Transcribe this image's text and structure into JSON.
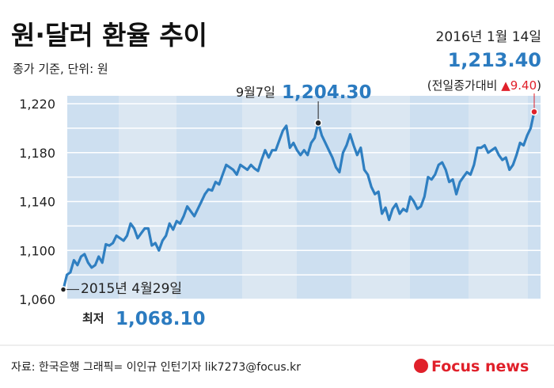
{
  "header": {
    "title": "원·달러 환율 추이",
    "subtitle": "종가 기준, 단위: 원",
    "date": "2016년 1월 14일",
    "latest_value": "1,213.40",
    "change_prefix": "(전일종가대비 ",
    "change_value": "▲9.40",
    "change_suffix": ")"
  },
  "annotations": {
    "peak_date": "9월7일",
    "peak_value": "1,204.30",
    "low_date": "2015년 4월29일",
    "low_label": "최저",
    "low_value": "1,068.10"
  },
  "footer": {
    "source": "자료: 한국은행   그래픽= 이인규 인턴기자 lik7273@focus.kr",
    "logo": "Focus news"
  },
  "colors": {
    "line": "#2f7fc1",
    "accent": "#2b7bc0",
    "up": "#e0202a",
    "plot_bg": "#dbe7f2",
    "band": "#cddff0"
  },
  "chart_data": {
    "type": "line",
    "title": "원·달러 환율 추이",
    "ylabel": "",
    "ylim": [
      1060,
      1220
    ],
    "yticks": [
      "1,220",
      "1,180",
      "1,140",
      "1,100",
      "1,060"
    ],
    "ytick_values": [
      1220,
      1180,
      1140,
      1100,
      1060
    ],
    "grid": true,
    "x_start": "2015년 4월29일",
    "x_end": "2016년 1월 14일",
    "values": [
      1068,
      1080,
      1082,
      1092,
      1088,
      1095,
      1097,
      1090,
      1086,
      1088,
      1095,
      1090,
      1105,
      1104,
      1106,
      1112,
      1110,
      1108,
      1112,
      1122,
      1118,
      1110,
      1114,
      1118,
      1118,
      1104,
      1106,
      1100,
      1108,
      1112,
      1122,
      1117,
      1124,
      1122,
      1128,
      1136,
      1132,
      1128,
      1134,
      1140,
      1146,
      1150,
      1149,
      1156,
      1154,
      1162,
      1170,
      1168,
      1166,
      1162,
      1170,
      1168,
      1166,
      1170,
      1167,
      1165,
      1174,
      1182,
      1176,
      1182,
      1182,
      1190,
      1198,
      1202,
      1184,
      1188,
      1182,
      1178,
      1182,
      1178,
      1188,
      1192,
      1204.3,
      1194,
      1188,
      1182,
      1176,
      1168,
      1164,
      1180,
      1186,
      1195,
      1186,
      1178,
      1184,
      1166,
      1162,
      1152,
      1146,
      1148,
      1130,
      1135,
      1125,
      1134,
      1138,
      1130,
      1134,
      1132,
      1144,
      1140,
      1134,
      1136,
      1144,
      1160,
      1158,
      1162,
      1170,
      1172,
      1166,
      1156,
      1158,
      1146,
      1156,
      1160,
      1164,
      1162,
      1170,
      1184,
      1184,
      1186,
      1180,
      1182,
      1184,
      1178,
      1174,
      1176,
      1166,
      1170,
      1178,
      1188,
      1186,
      1194,
      1200,
      1213.4
    ]
  }
}
